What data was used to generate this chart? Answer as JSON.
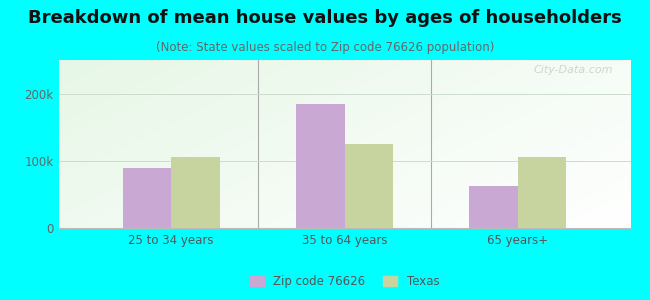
{
  "title": "Breakdown of mean house values by ages of householders",
  "subtitle": "(Note: State values scaled to Zip code 76626 population)",
  "categories": [
    "25 to 34 years",
    "35 to 64 years",
    "65 years+"
  ],
  "zip_values": [
    90000,
    185000,
    62000
  ],
  "state_values": [
    105000,
    125000,
    105000
  ],
  "zip_color": "#c9a8d4",
  "state_color": "#c8d4a0",
  "bar_width": 0.28,
  "ylim": [
    0,
    250000
  ],
  "yticks": [
    0,
    100000,
    200000
  ],
  "ytick_labels": [
    "0",
    "100k",
    "200k"
  ],
  "bg_color": "#00ffff",
  "grid_color": "#ccddcc",
  "title_fontsize": 13,
  "subtitle_fontsize": 8.5,
  "legend_label_zip": "Zip code 76626",
  "legend_label_state": "Texas",
  "watermark": "City-Data.com",
  "separator_color": "#aaaaaa",
  "separator_lw": 0.8
}
